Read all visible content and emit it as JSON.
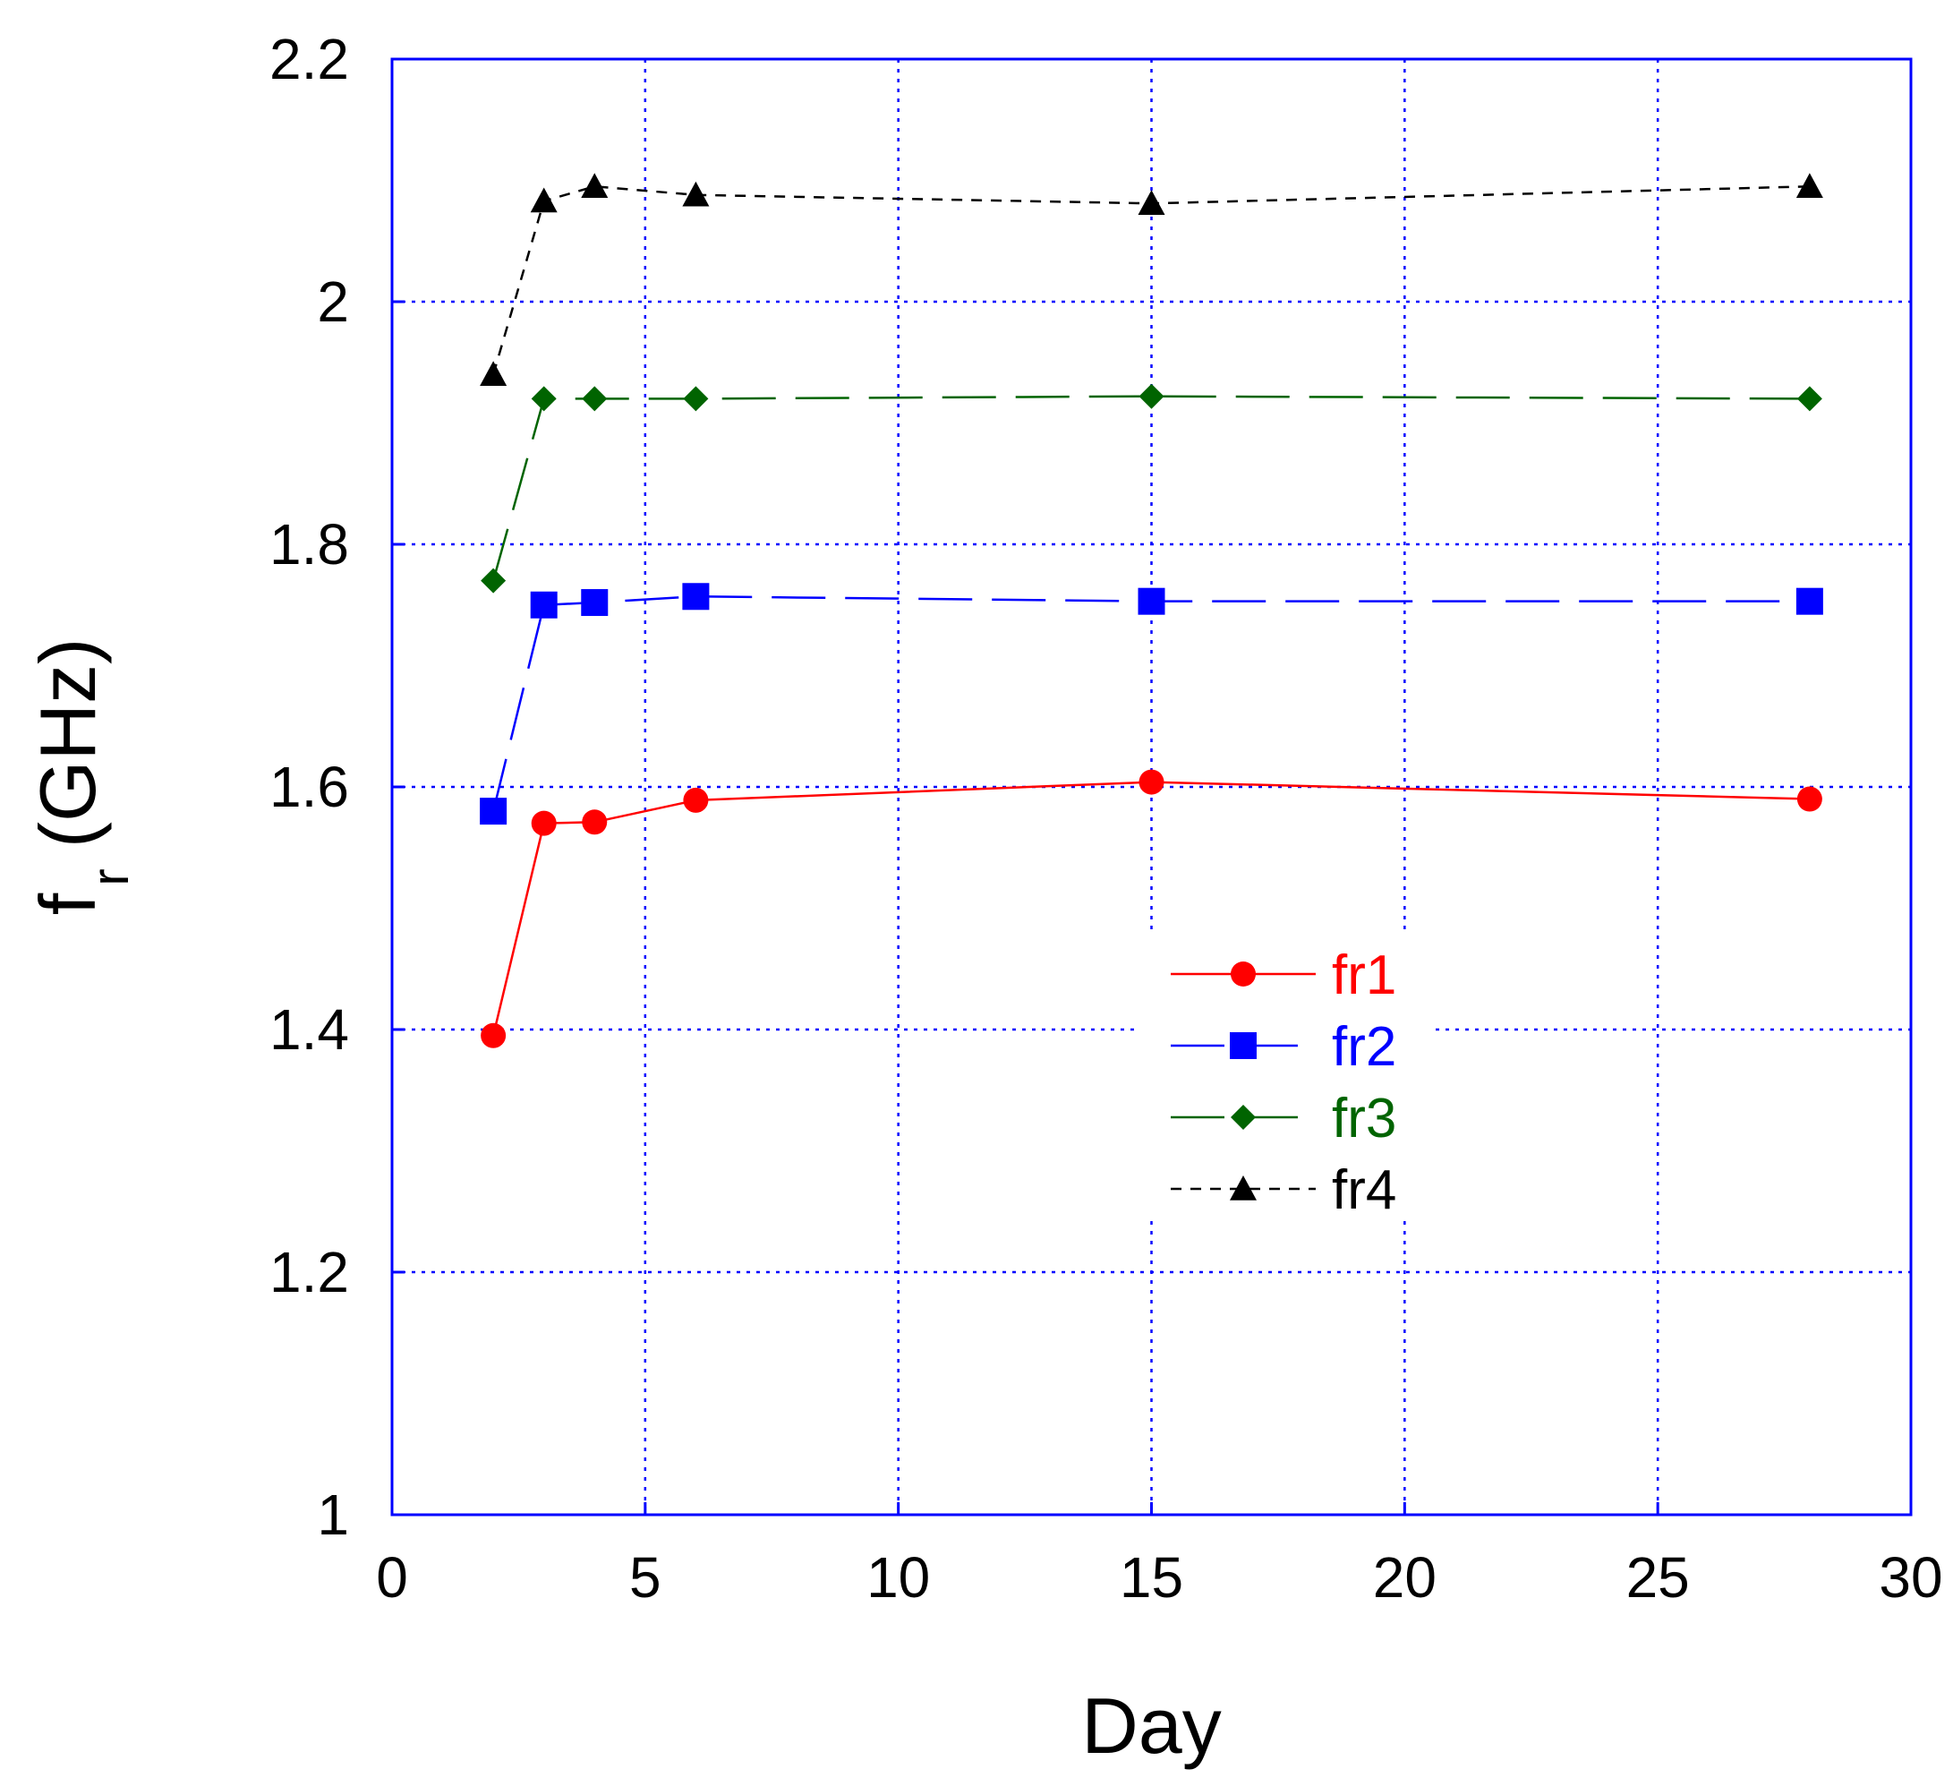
{
  "chart_data": {
    "type": "line",
    "title": "",
    "xlabel": "Day",
    "ylabel_main": "f",
    "ylabel_sub": "r",
    "ylabel_unit": "(GHz)",
    "xlim": [
      0,
      30
    ],
    "ylim": [
      1,
      2.2
    ],
    "x_ticks": [
      0,
      5,
      10,
      15,
      20,
      25,
      30
    ],
    "y_ticks": [
      1,
      1.2,
      1.4,
      1.6,
      1.8,
      2,
      2.2
    ],
    "x_tick_labels": [
      "0",
      "5",
      "10",
      "15",
      "20",
      "25",
      "30"
    ],
    "y_tick_labels": [
      "1",
      "1.2",
      "1.4",
      "1.6",
      "1.8",
      "2",
      "2.2"
    ],
    "grid": true,
    "legend_position": "center-right",
    "x": [
      2,
      3,
      4,
      6,
      15,
      28
    ],
    "series": [
      {
        "name": "fr1",
        "values": [
          1.395,
          1.57,
          1.571,
          1.589,
          1.604,
          1.59
        ],
        "color": "#ff0000",
        "marker": "circle",
        "dash": "solid"
      },
      {
        "name": "fr2",
        "values": [
          1.58,
          1.75,
          1.752,
          1.757,
          1.753,
          1.753
        ],
        "color": "#0000ff",
        "marker": "square",
        "dash": "long-dash"
      },
      {
        "name": "fr3",
        "values": [
          1.77,
          1.92,
          1.92,
          1.92,
          1.922,
          1.92
        ],
        "color": "#006400",
        "marker": "diamond",
        "dash": "long-dash"
      },
      {
        "name": "fr4",
        "values": [
          1.94,
          2.083,
          2.095,
          2.088,
          2.081,
          2.095
        ],
        "color": "#000000",
        "marker": "triangle",
        "dash": "short-dash"
      }
    ]
  },
  "colors": {
    "axis": "#0000ff",
    "grid": "#0000ff"
  }
}
